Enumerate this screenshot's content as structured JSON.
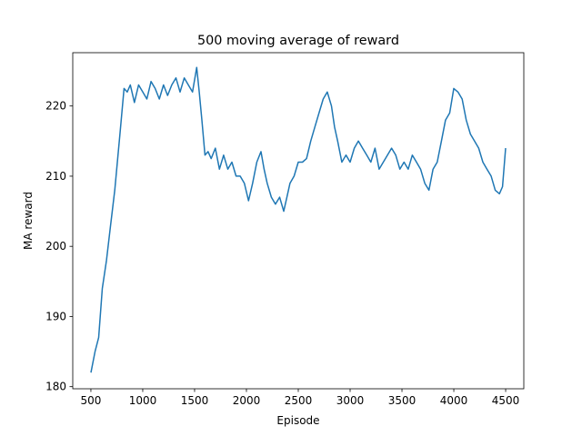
{
  "chart_data": {
    "type": "line",
    "title": "500 moving average of reward",
    "xlabel": "Episode",
    "ylabel": "MA reward",
    "xlim": [
      325,
      4675
    ],
    "ylim": [
      179.7,
      227.6
    ],
    "xticks": [
      500,
      1000,
      1500,
      2000,
      2500,
      3000,
      3500,
      4000,
      4500
    ],
    "yticks": [
      180,
      190,
      200,
      210,
      220
    ],
    "grid": false,
    "line_color": "#1f77b4",
    "series": [
      {
        "name": "",
        "x": [
          500,
          540,
          575,
          610,
          650,
          690,
          730,
          780,
          820,
          850,
          880,
          920,
          960,
          1000,
          1040,
          1080,
          1120,
          1160,
          1200,
          1240,
          1280,
          1320,
          1360,
          1400,
          1440,
          1480,
          1520,
          1545,
          1570,
          1600,
          1630,
          1660,
          1700,
          1740,
          1780,
          1820,
          1860,
          1900,
          1940,
          1980,
          2020,
          2060,
          2100,
          2140,
          2170,
          2200,
          2240,
          2280,
          2320,
          2360,
          2390,
          2420,
          2460,
          2500,
          2540,
          2580,
          2620,
          2660,
          2700,
          2740,
          2780,
          2820,
          2850,
          2880,
          2920,
          2960,
          3000,
          3040,
          3080,
          3120,
          3160,
          3200,
          3240,
          3280,
          3320,
          3360,
          3400,
          3440,
          3480,
          3520,
          3560,
          3600,
          3640,
          3680,
          3720,
          3760,
          3800,
          3840,
          3880,
          3920,
          3960,
          4000,
          4040,
          4080,
          4120,
          4160,
          4200,
          4240,
          4280,
          4320,
          4360,
          4400,
          4440,
          4470,
          4500
        ],
        "y": [
          182,
          185,
          187,
          194,
          198,
          203,
          208,
          216,
          222.5,
          222,
          223,
          220.5,
          223,
          222,
          221,
          223.5,
          222.5,
          221,
          223,
          221.5,
          223,
          224,
          222,
          224,
          223,
          222,
          225.5,
          222,
          218,
          213,
          213.5,
          212.5,
          214,
          211,
          213,
          211,
          212,
          210,
          210,
          209,
          206.5,
          209,
          212,
          213.5,
          211,
          209,
          207,
          206,
          207,
          205,
          207,
          209,
          210,
          212,
          212,
          212.5,
          215,
          217,
          219,
          221,
          222,
          220,
          217,
          215,
          212,
          213,
          212,
          214,
          215,
          214,
          213,
          212,
          214,
          211,
          212,
          213,
          214,
          213,
          211,
          212,
          211,
          213,
          212,
          211,
          209,
          208,
          211,
          212,
          215,
          218,
          219,
          222.5,
          222,
          221,
          218,
          216,
          215,
          214,
          212,
          211,
          210,
          208,
          207.5,
          208.5,
          214
        ]
      }
    ]
  }
}
